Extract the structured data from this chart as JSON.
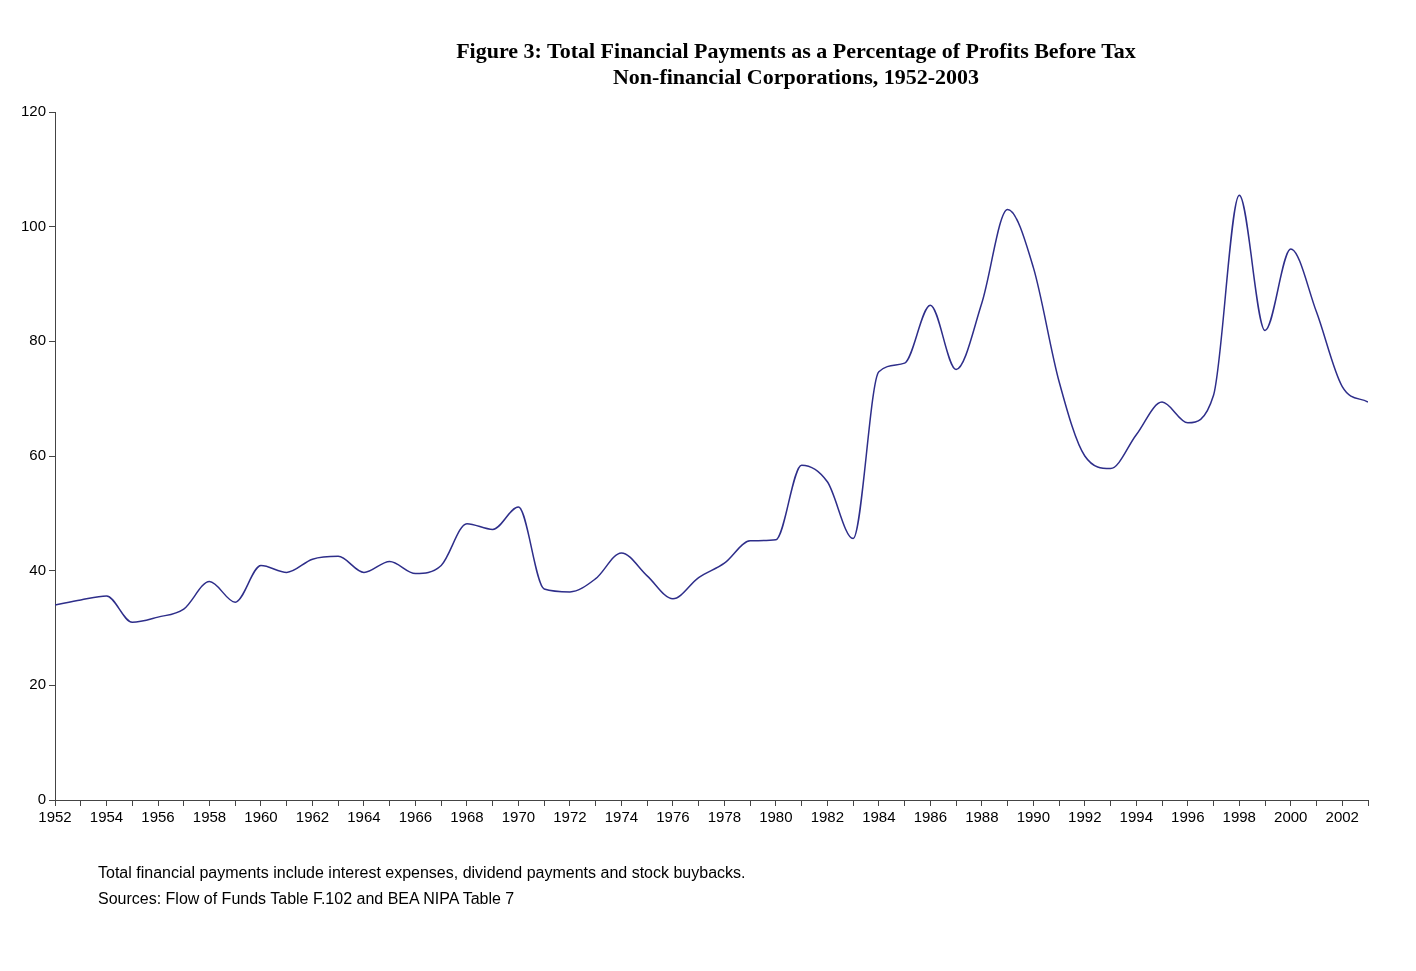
{
  "chart_data": {
    "type": "line",
    "title": "Figure 3: Total Financial Payments as a Percentage of Profits Before Tax",
    "subtitle": "Non-financial Corporations, 1952-2003",
    "x": [
      1952,
      1953,
      1954,
      1955,
      1956,
      1957,
      1958,
      1959,
      1960,
      1961,
      1962,
      1963,
      1964,
      1965,
      1966,
      1967,
      1968,
      1969,
      1970,
      1971,
      1972,
      1973,
      1974,
      1975,
      1976,
      1977,
      1978,
      1979,
      1980,
      1981,
      1982,
      1983,
      1984,
      1985,
      1986,
      1987,
      1988,
      1989,
      1990,
      1991,
      1992,
      1993,
      1994,
      1995,
      1996,
      1997,
      1998,
      1999,
      2000,
      2001,
      2002,
      2003
    ],
    "series": [
      {
        "color": "#2e2e8a",
        "values": [
          34,
          34.9,
          35.6,
          31,
          31.9,
          33.3,
          38.1,
          34.5,
          40.9,
          39.7,
          42,
          42.5,
          39.7,
          41.6,
          39.5,
          40.9,
          48.2,
          47.2,
          51.1,
          36.8,
          36.3,
          38.6,
          43.1,
          39.1,
          35.1,
          38.8,
          41.3,
          45.2,
          45.4,
          58.4,
          55.5,
          45.6,
          74.7,
          76.2,
          86.3,
          75.1,
          86.7,
          103,
          92.9,
          73,
          60,
          57.8,
          63.7,
          69.4,
          65.8,
          70.6,
          105.5,
          81.9,
          96.1,
          85.1,
          72.1,
          69.4
        ]
      }
    ],
    "xlim": [
      1952,
      2003
    ],
    "xticks": [
      1952,
      {
        "value": 1953,
        "label": null
      },
      1954,
      {
        "value": 1955,
        "label": null
      },
      1956,
      {
        "value": 1957,
        "label": null
      },
      1958,
      {
        "value": 1959,
        "label": null
      },
      1960,
      {
        "value": 1961,
        "label": null
      },
      1962,
      {
        "value": 1963,
        "label": null
      },
      1964,
      {
        "value": 1965,
        "label": null
      },
      1966,
      {
        "value": 1967,
        "label": null
      },
      1968,
      {
        "value": 1969,
        "label": null
      },
      1970,
      {
        "value": 1971,
        "label": null
      },
      1972,
      {
        "value": 1973,
        "label": null
      },
      1974,
      {
        "value": 1975,
        "label": null
      },
      1976,
      {
        "value": 1977,
        "label": null
      },
      1978,
      {
        "value": 1979,
        "label": null
      },
      1980,
      {
        "value": 1981,
        "label": null
      },
      1982,
      {
        "value": 1983,
        "label": null
      },
      1984,
      {
        "value": 1985,
        "label": null
      },
      1986,
      {
        "value": 1987,
        "label": null
      },
      1988,
      {
        "value": 1989,
        "label": null
      },
      1990,
      {
        "value": 1991,
        "label": null
      },
      1992,
      {
        "value": 1993,
        "label": null
      },
      1994,
      {
        "value": 1995,
        "label": null
      },
      1996,
      {
        "value": 1997,
        "label": null
      },
      1998,
      {
        "value": 1999,
        "label": null
      },
      2000,
      {
        "value": 2001,
        "label": null
      },
      2002,
      {
        "value": 2003,
        "label": null
      }
    ],
    "ylim": [
      0,
      120
    ],
    "yticks": [
      0,
      20,
      40,
      60,
      80,
      100,
      120
    ],
    "grid": false,
    "legend": false,
    "marker": "none",
    "line_style": "solid",
    "annotations": [
      "Total financial payments include interest expenses, dividend payments and stock buybacks.",
      "Sources: Flow of Funds Table F.102 and BEA NIPA Table 7"
    ]
  }
}
